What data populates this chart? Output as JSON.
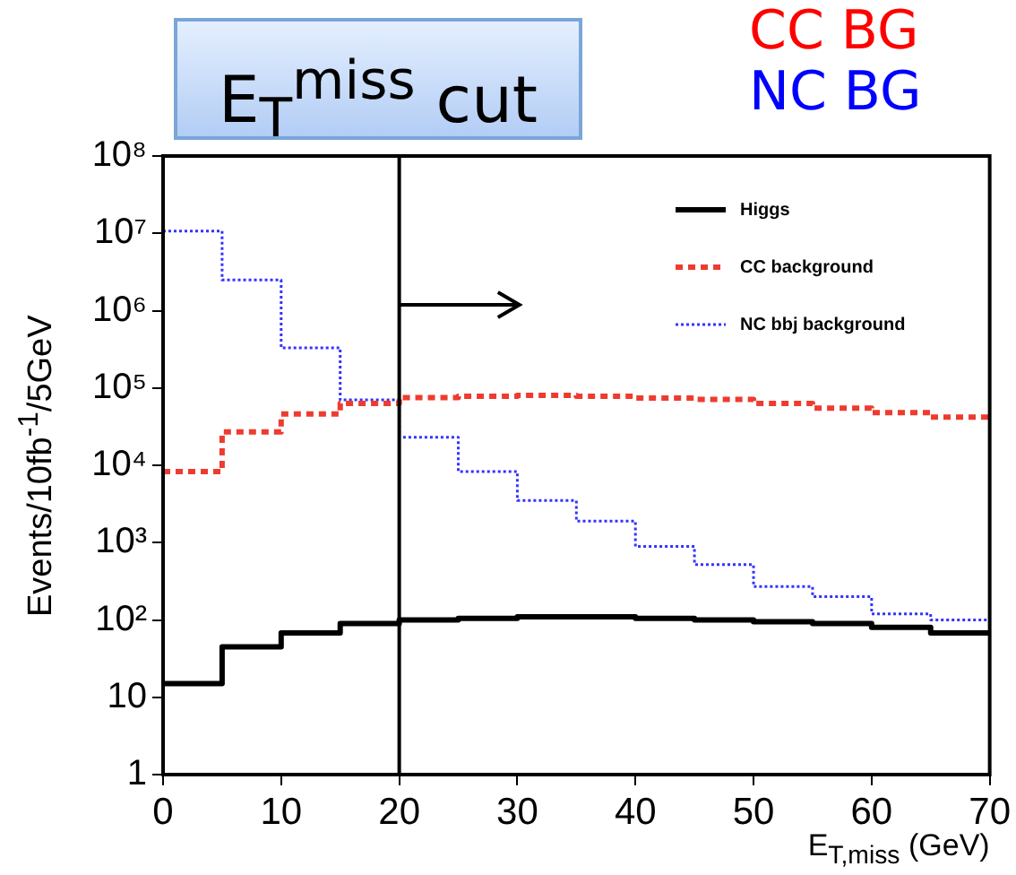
{
  "chart_data": {
    "type": "histogram",
    "xlabel": "E$_{T,miss}$ (GeV)",
    "ylabel": "Events/10fb$^{-1}$/5GeV",
    "bins": [
      0,
      5,
      10,
      15,
      20,
      25,
      30,
      35,
      40,
      45,
      50,
      55,
      60,
      65,
      70
    ],
    "series": [
      {
        "name": "Higgs",
        "color": "#000000",
        "line_style": "solid",
        "values": [
          15,
          45,
          68,
          90,
          100,
          105,
          110,
          110,
          105,
          100,
          95,
          90,
          80,
          68
        ]
      },
      {
        "name": "CC background",
        "color": "#ee3b2f",
        "line_style": "dashed",
        "values": [
          8300,
          27000,
          46000,
          63000,
          75000,
          78000,
          80000,
          78000,
          74000,
          71000,
          63000,
          55000,
          48000,
          42000
        ]
      },
      {
        "name": "NC bbj background",
        "color": "#3333ff",
        "line_style": "dotted",
        "values": [
          10700000,
          2500000,
          330000,
          70000,
          23000,
          8300,
          3500,
          1900,
          890,
          520,
          270,
          200,
          120,
          100
        ]
      }
    ],
    "xlim": [
      0,
      70
    ],
    "xticks": [
      0,
      10,
      20,
      30,
      40,
      50,
      60,
      70
    ],
    "ylim": [
      1,
      100000000
    ],
    "yticks": [
      1,
      10,
      {
        "value": 100,
        "label": "10²"
      },
      {
        "value": 1000,
        "label": "10³"
      },
      {
        "value": 10000,
        "label": "10⁴"
      },
      {
        "value": 100000,
        "label": "10⁵"
      },
      {
        "value": 1000000,
        "label": "10⁶"
      },
      {
        "value": 10000000,
        "label": "10⁷"
      },
      {
        "value": 100000000,
        "label": "10⁸"
      }
    ],
    "log": "y",
    "legend": "top right",
    "ref_lines": [
      {
        "axis": "x",
        "value": 20,
        "color": "#000000"
      }
    ],
    "annotations": [
      "E$_{T}$$^{miss}$ cut",
      "CC BG",
      "NC BG"
    ]
  }
}
